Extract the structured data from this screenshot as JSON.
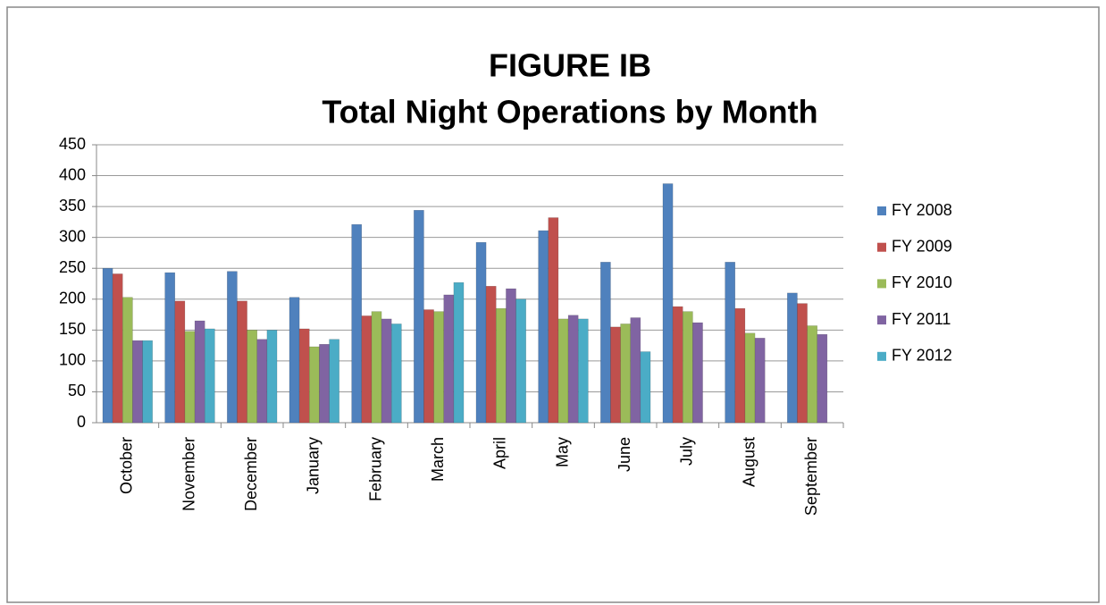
{
  "chart_data": {
    "type": "bar",
    "title": "FIGURE IB",
    "subtitle": "Total Night Operations by Month",
    "categories": [
      "October",
      "November",
      "December",
      "January",
      "February",
      "March",
      "April",
      "May",
      "June",
      "July",
      "August",
      "September"
    ],
    "series": [
      {
        "name": "FY 2008",
        "color": "#4f81bd",
        "values": [
          250,
          243,
          245,
          203,
          321,
          344,
          292,
          311,
          260,
          387,
          260,
          210
        ]
      },
      {
        "name": "FY 2009",
        "color": "#c0504d",
        "values": [
          241,
          197,
          197,
          152,
          173,
          183,
          221,
          332,
          155,
          188,
          185,
          193
        ]
      },
      {
        "name": "FY 2010",
        "color": "#9bbb59",
        "values": [
          203,
          148,
          150,
          123,
          180,
          180,
          185,
          168,
          160,
          180,
          145,
          157
        ]
      },
      {
        "name": "FY 2011",
        "color": "#8064a2",
        "values": [
          133,
          165,
          135,
          127,
          168,
          207,
          217,
          174,
          170,
          162,
          137,
          143
        ]
      },
      {
        "name": "FY 2012",
        "color": "#4bacc6",
        "values": [
          133,
          152,
          150,
          135,
          160,
          227,
          200,
          168,
          115,
          null,
          null,
          null
        ]
      }
    ],
    "ylim": [
      0,
      450
    ],
    "yticks": [
      0,
      50,
      100,
      150,
      200,
      250,
      300,
      350,
      400,
      450
    ],
    "grid": true,
    "legend": "right"
  }
}
